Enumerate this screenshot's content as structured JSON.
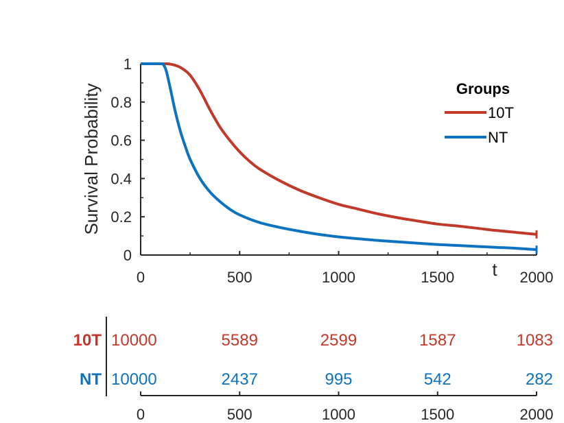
{
  "chart_data": {
    "type": "line",
    "title": "",
    "xlabel": "t",
    "ylabel": "Survival Probability",
    "xlim": [
      0,
      2000
    ],
    "ylim": [
      0,
      1
    ],
    "x_ticks": [
      "0",
      "500",
      "1000",
      "1500",
      "2000"
    ],
    "y_ticks": [
      "0",
      "0.2",
      "0.4",
      "0.6",
      "0.8",
      "1"
    ],
    "legend": {
      "title": "Groups",
      "position": "top-right"
    },
    "series": [
      {
        "name": "10T",
        "color": "#c0392b",
        "x": [
          0,
          120,
          150,
          180,
          210,
          250,
          300,
          350,
          400,
          450,
          500,
          550,
          600,
          700,
          800,
          900,
          1000,
          1100,
          1200,
          1300,
          1400,
          1500,
          1600,
          1700,
          1800,
          1900,
          2000
        ],
        "y": [
          1,
          1,
          0.998,
          0.99,
          0.975,
          0.94,
          0.86,
          0.76,
          0.67,
          0.6,
          0.54,
          0.49,
          0.45,
          0.39,
          0.34,
          0.3,
          0.265,
          0.24,
          0.215,
          0.195,
          0.178,
          0.162,
          0.152,
          0.14,
          0.128,
          0.118,
          0.108
        ]
      },
      {
        "name": "NT",
        "color": "#0d72c0",
        "x": [
          0,
          100,
          115,
          130,
          150,
          175,
          200,
          225,
          250,
          300,
          350,
          400,
          450,
          500,
          600,
          700,
          800,
          900,
          1000,
          1100,
          1200,
          1300,
          1400,
          1500,
          1600,
          1700,
          1800,
          1900,
          2000
        ],
        "y": [
          1,
          1,
          0.995,
          0.96,
          0.87,
          0.75,
          0.65,
          0.57,
          0.5,
          0.4,
          0.33,
          0.28,
          0.24,
          0.21,
          0.17,
          0.145,
          0.125,
          0.108,
          0.095,
          0.085,
          0.076,
          0.069,
          0.062,
          0.055,
          0.05,
          0.045,
          0.04,
          0.035,
          0.028
        ]
      }
    ],
    "risk_table": {
      "time_ticks": [
        "0",
        "500",
        "1000",
        "1500",
        "2000"
      ],
      "rows": [
        {
          "group": "10T",
          "color": "#c0392b",
          "counts": [
            "10000",
            "5589",
            "2599",
            "1587",
            "1083"
          ]
        },
        {
          "group": "NT",
          "color": "#0d72c0",
          "counts": [
            "10000",
            "2437",
            "995",
            "542",
            "282"
          ]
        }
      ]
    }
  }
}
